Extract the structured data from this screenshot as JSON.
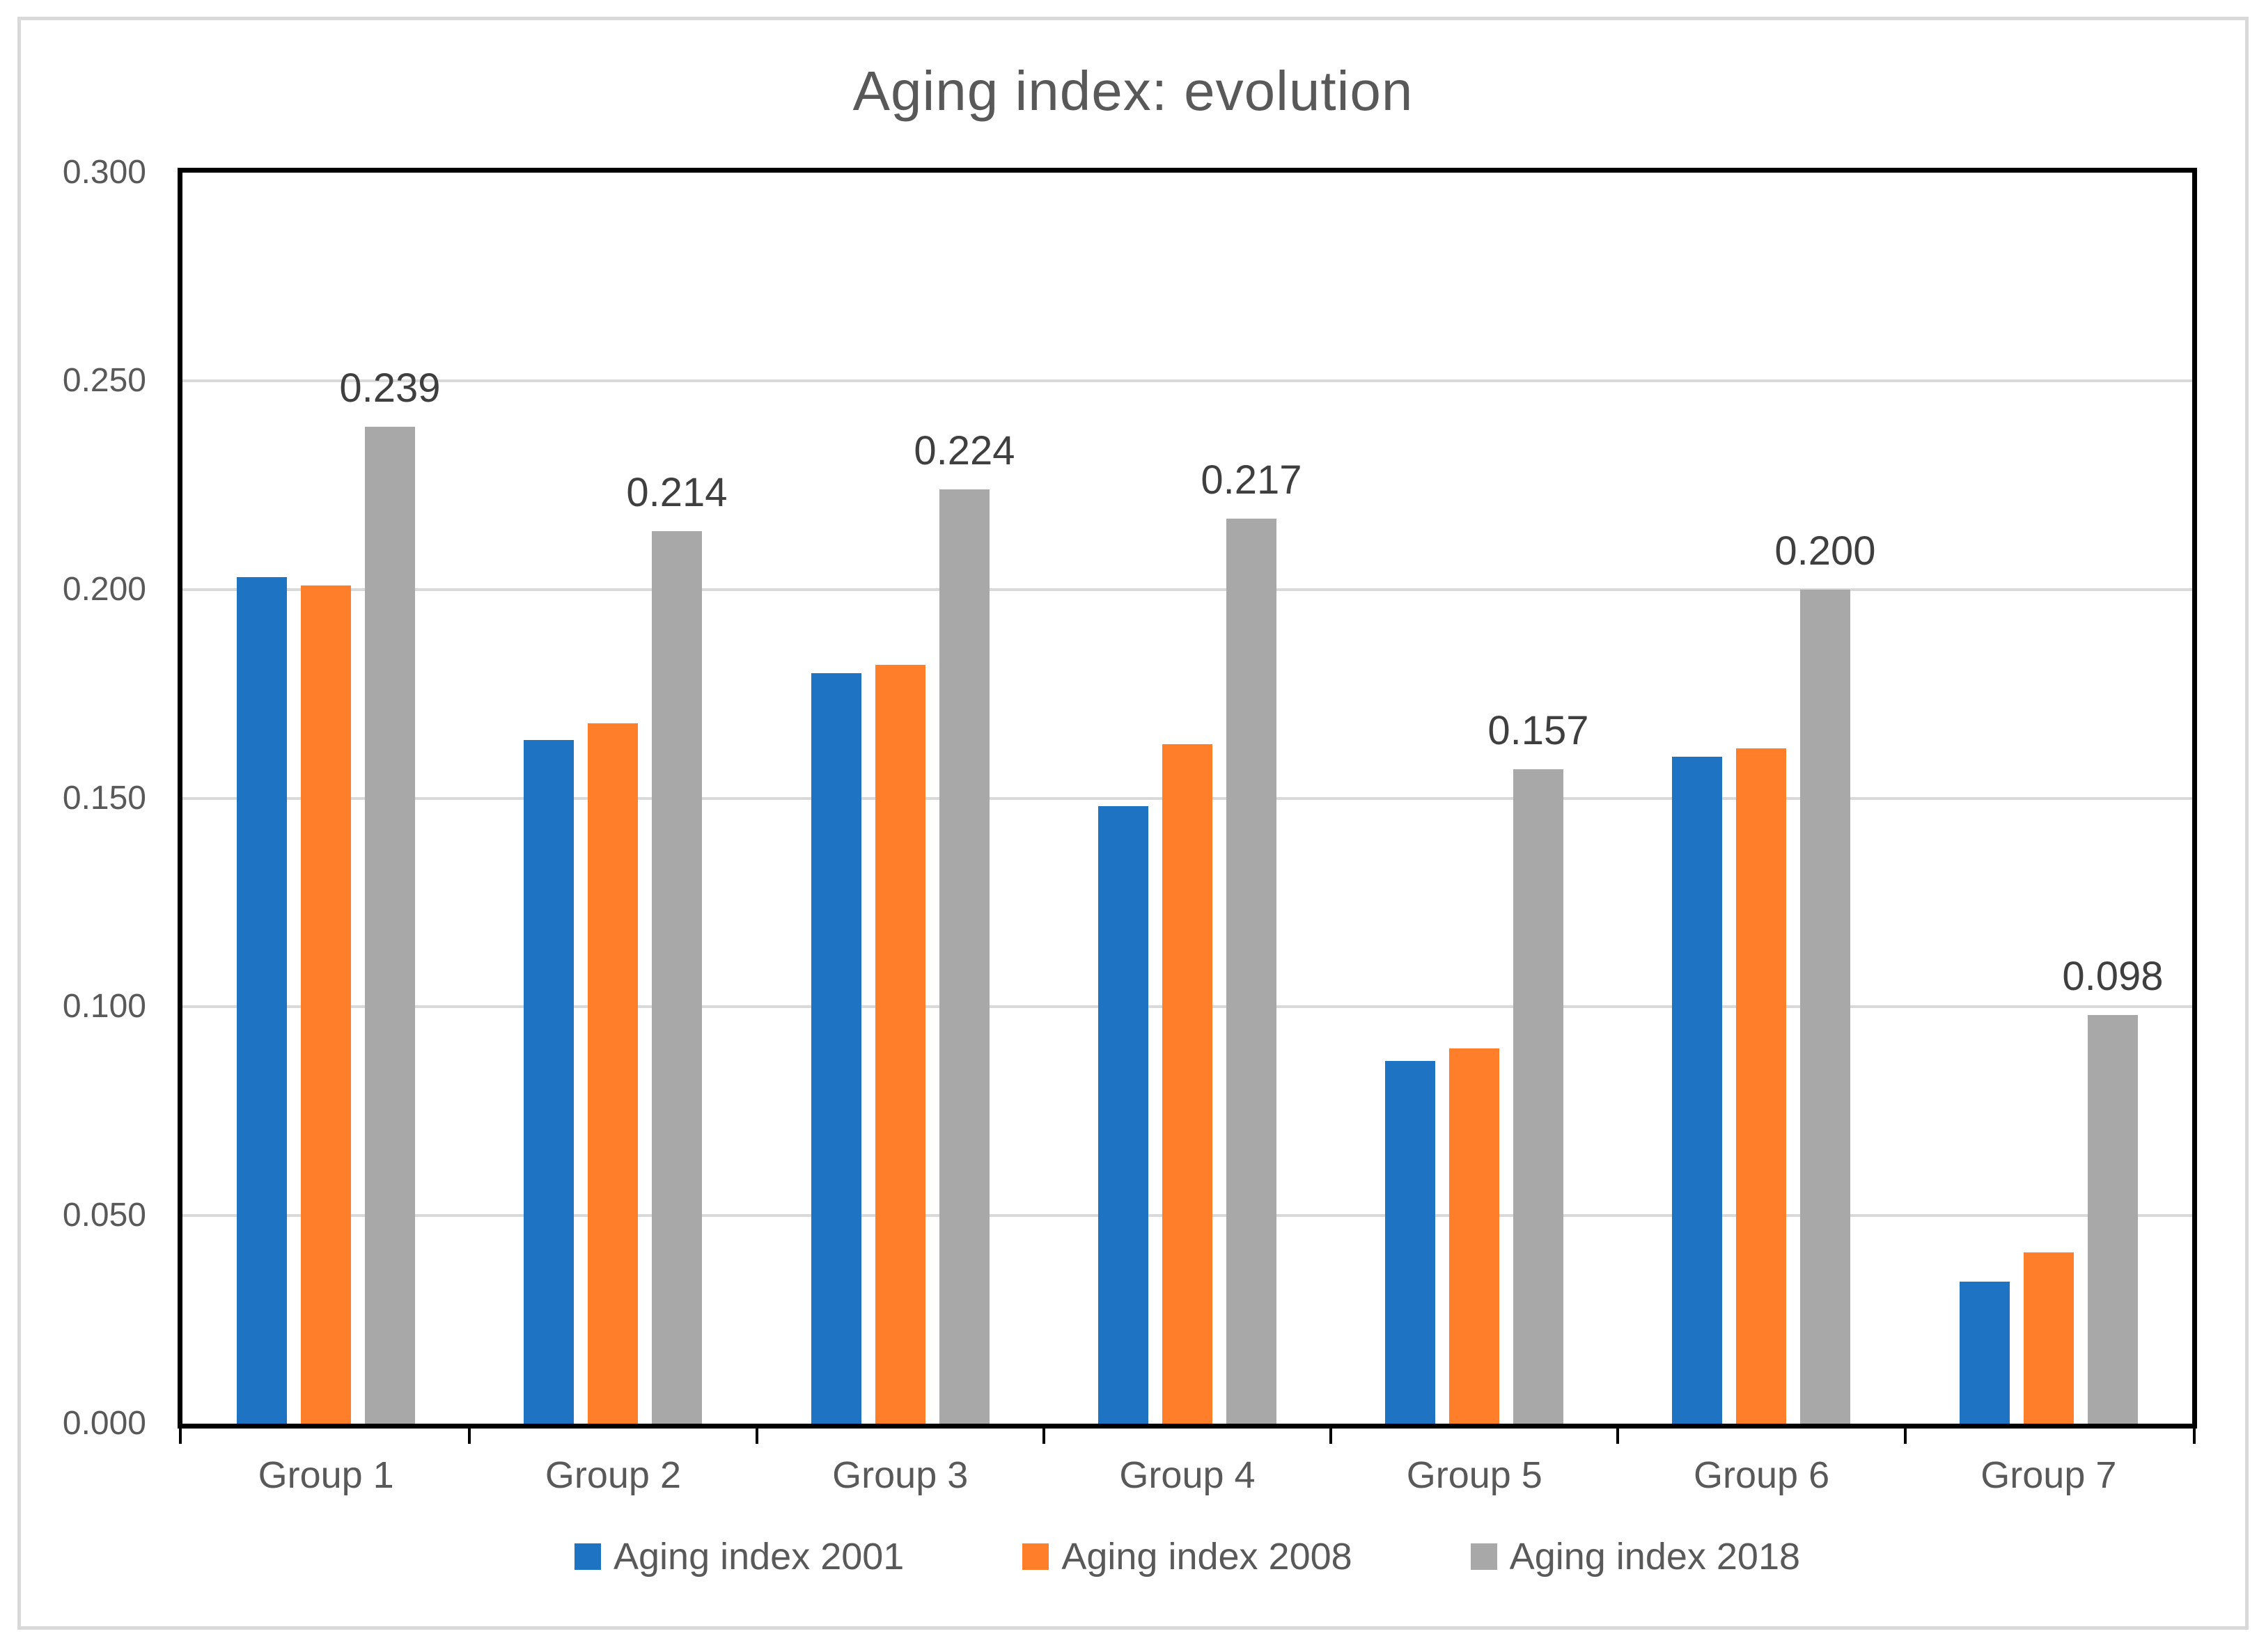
{
  "chart_data": {
    "type": "bar",
    "title": "Aging index: evolution",
    "categories": [
      "Group 1",
      "Group 2",
      "Group 3",
      "Group 4",
      "Group 5",
      "Group 6",
      "Group 7"
    ],
    "series": [
      {
        "name": "Aging index 2001",
        "year": "2001",
        "color": "#1E73C3",
        "values": [
          0.203,
          0.164,
          0.18,
          0.148,
          0.087,
          0.16,
          0.034
        ]
      },
      {
        "name": "Aging index 2008",
        "year": "2008",
        "color": "#FF7E2A",
        "values": [
          0.201,
          0.168,
          0.182,
          0.163,
          0.09,
          0.162,
          0.041
        ]
      },
      {
        "name": "Aging index 2018",
        "year": "2018",
        "color": "#A8A8A8",
        "values": [
          0.239,
          0.214,
          0.224,
          0.217,
          0.157,
          0.2,
          0.098
        ],
        "data_labels": [
          "0.239",
          "0.214",
          "0.224",
          "0.217",
          "0.157",
          "0.200",
          "0.098"
        ]
      }
    ],
    "ylim": [
      0,
      0.3
    ],
    "yticks": [
      0.3,
      0.25,
      0.2,
      0.15,
      0.1,
      0.05,
      0
    ],
    "ytick_labels": [
      "0.300",
      "0.250",
      "0.200",
      "0.150",
      "0.100",
      "0.050",
      "0.000"
    ],
    "grid": true,
    "legend_position": "bottom",
    "colors": {
      "gridline": "#D9D9D9",
      "axis": "#000000",
      "label_text": "#595959",
      "data_label_text": "#3F3F3F",
      "frame": "#D9D9D9",
      "background": "#FFFFFF"
    }
  }
}
